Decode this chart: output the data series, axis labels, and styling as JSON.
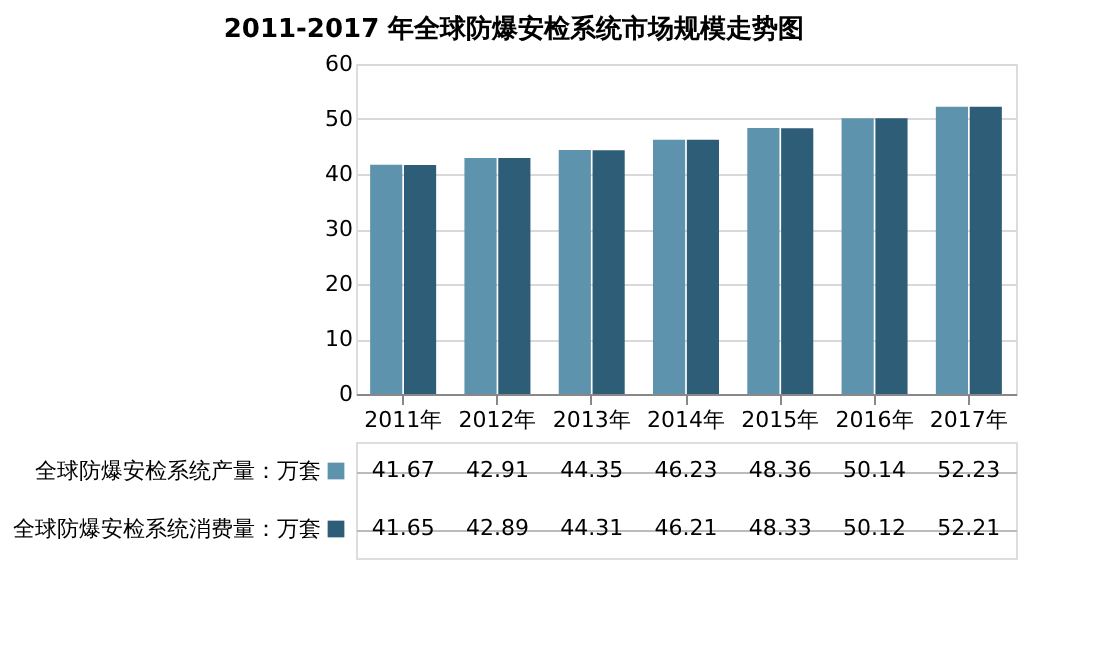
{
  "chart_data": {
    "type": "bar",
    "title": "2011-2017 年全球防爆安检系统市场规模走势图",
    "categories": [
      "2011年",
      "2012年",
      "2013年",
      "2014年",
      "2015年",
      "2016年",
      "2017年"
    ],
    "series": [
      {
        "name": "全球防爆安检系统产量：万套",
        "color": "#5d93ad",
        "values": [
          41.67,
          42.91,
          44.35,
          46.23,
          48.36,
          50.14,
          52.23
        ]
      },
      {
        "name": "全球防爆安检系统消费量：万套",
        "color": "#2e5d78",
        "values": [
          41.65,
          42.89,
          44.31,
          46.21,
          48.33,
          50.12,
          52.21
        ]
      }
    ],
    "ylim": [
      0,
      60
    ],
    "yticks": [
      0,
      10,
      20,
      30,
      40,
      50,
      60
    ],
    "grid": "y",
    "legend": "bottom",
    "data_labels": true
  }
}
